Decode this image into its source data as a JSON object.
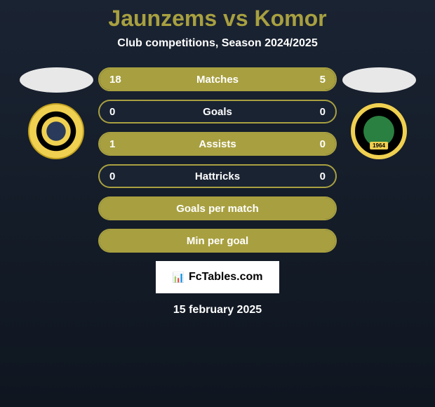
{
  "title": "Jaunzems vs Komor",
  "subtitle": "Club competitions, Season 2024/2025",
  "colors": {
    "accent": "#a8a040",
    "text": "#ffffff",
    "bg_start": "#1a2332",
    "bg_end": "#0f1620"
  },
  "stats": {
    "rows": [
      {
        "label": "Matches",
        "left": "18",
        "right": "5",
        "left_pct": 78,
        "right_pct": 22,
        "show_vals": true
      },
      {
        "label": "Goals",
        "left": "0",
        "right": "0",
        "left_pct": 0,
        "right_pct": 0,
        "show_vals": true
      },
      {
        "label": "Assists",
        "left": "1",
        "right": "0",
        "left_pct": 100,
        "right_pct": 0,
        "show_vals": true,
        "full": true
      },
      {
        "label": "Hattricks",
        "left": "0",
        "right": "0",
        "left_pct": 0,
        "right_pct": 0,
        "show_vals": true
      },
      {
        "label": "Goals per match",
        "left": "",
        "right": "",
        "left_pct": 0,
        "right_pct": 0,
        "show_vals": false,
        "full": true
      },
      {
        "label": "Min per goal",
        "left": "",
        "right": "",
        "left_pct": 0,
        "right_pct": 0,
        "show_vals": false,
        "full": true
      }
    ]
  },
  "footer": {
    "brand": "FcTables.com",
    "date": "15 february 2025"
  }
}
